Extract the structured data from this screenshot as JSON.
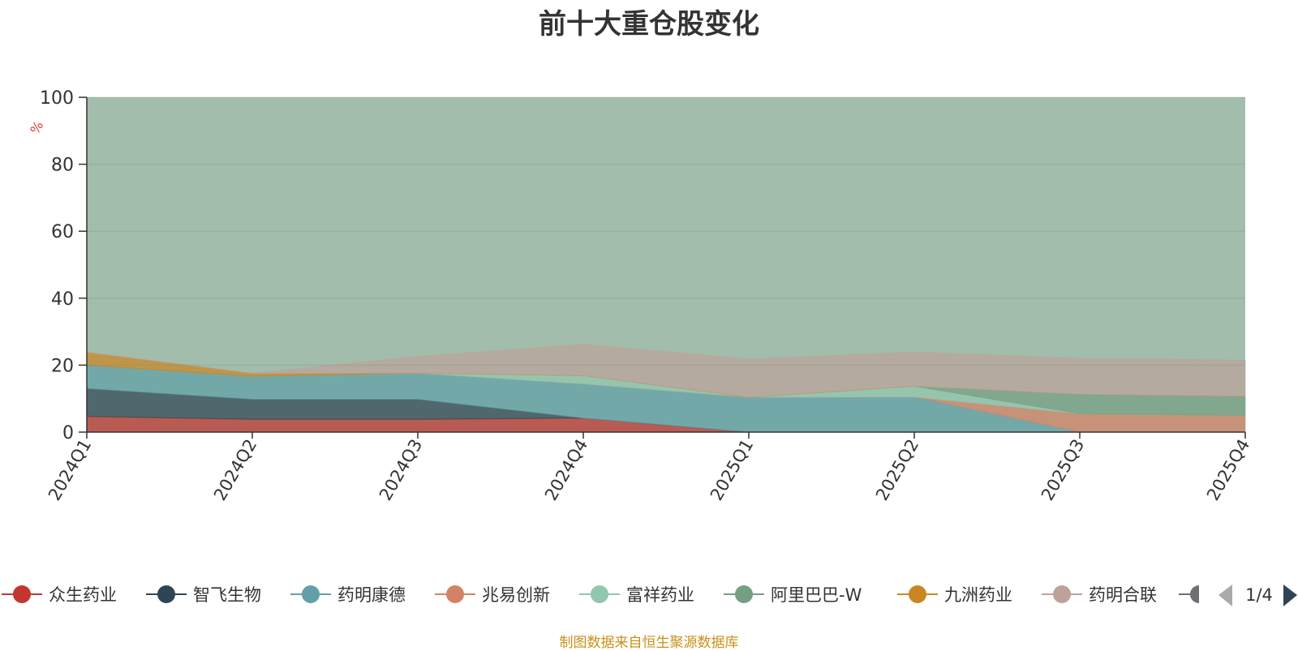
{
  "chart_data": {
    "type": "area",
    "stacked": true,
    "title": "前十大重仓股变化",
    "ylabel": "%",
    "ylim": [
      0,
      100
    ],
    "yticks": [
      0,
      20,
      40,
      60,
      80,
      100
    ],
    "categories": [
      "2024Q1",
      "2024Q2",
      "2024Q3",
      "2024Q4",
      "2025Q1",
      "2025Q2",
      "2025Q3",
      "2025Q4"
    ],
    "series": [
      {
        "name": "众生药业",
        "color": "#c23531",
        "values": [
          4.7,
          3.8,
          3.8,
          4.2,
          0,
          0,
          0,
          0
        ]
      },
      {
        "name": "智飞生物",
        "color": "#2f4554",
        "values": [
          8.3,
          6.0,
          6.0,
          0,
          0,
          0,
          0,
          0
        ]
      },
      {
        "name": "药明康德",
        "color": "#61a0a8",
        "values": [
          7.0,
          6.9,
          7.8,
          10.2,
          10.4,
          10.5,
          0,
          0
        ]
      },
      {
        "name": "兆易创新",
        "color": "#d48265",
        "values": [
          0,
          0,
          0,
          0,
          0,
          0,
          5.5,
          5.0
        ]
      },
      {
        "name": "富祥药业",
        "color": "#91c7ae",
        "values": [
          0,
          0,
          0,
          2.5,
          0,
          3.2,
          0,
          0
        ]
      },
      {
        "name": "阿里巴巴-W",
        "color": "#749f83",
        "values": [
          0,
          0,
          0,
          0,
          0,
          0,
          5.8,
          5.7
        ]
      },
      {
        "name": "九洲药业",
        "color": "#ca8622",
        "values": [
          3.8,
          0.8,
          0,
          0,
          0,
          0,
          0,
          0
        ]
      },
      {
        "name": "药明合联",
        "color": "#bda29a",
        "values": [
          0,
          0,
          5.0,
          9.3,
          11.4,
          10.2,
          10.7,
          10.8
        ]
      }
    ],
    "legend": {
      "names": [
        "众生药业",
        "智飞生物",
        "药明康德",
        "兆易创新",
        "富祥药业",
        "阿里巴巴-W",
        "九洲药业",
        "药明合联"
      ],
      "colors": [
        "#c23531",
        "#2f4554",
        "#61a0a8",
        "#d48265",
        "#91c7ae",
        "#749f83",
        "#ca8622",
        "#bda29a"
      ],
      "overflow_color": "#6e7074",
      "page": "1/4"
    }
  },
  "footer": {
    "source": "制图数据来自恒生聚源数据库",
    "source_color": "#c9901c"
  }
}
